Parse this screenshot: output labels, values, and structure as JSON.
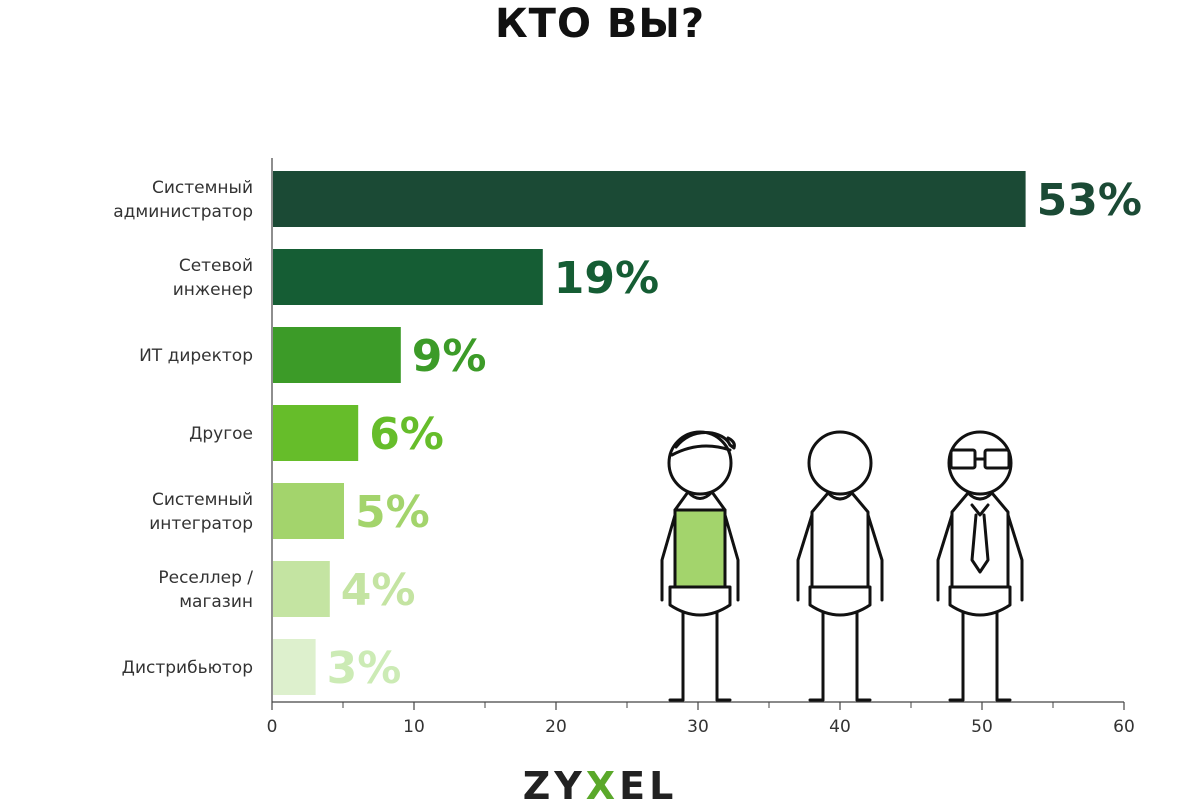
{
  "title": "КТО ВЫ?",
  "brand": {
    "prefix": "ZY",
    "accent": "X",
    "suffix": "EL"
  },
  "chart_data": {
    "type": "bar",
    "orientation": "horizontal",
    "title": "КТО ВЫ?",
    "xlabel": "",
    "ylabel": "",
    "xlim": [
      0,
      60
    ],
    "xticks": [
      0,
      10,
      20,
      30,
      40,
      50,
      60
    ],
    "grid": false,
    "categories": [
      [
        "Системный",
        "администратор"
      ],
      [
        "Сетевой",
        "инженер"
      ],
      [
        "ИТ директор"
      ],
      [
        "Другое"
      ],
      [
        "Системный",
        "интегратор"
      ],
      [
        "Реселлер /",
        "магазин"
      ],
      [
        "Дистрибьютор"
      ]
    ],
    "values": [
      53,
      19,
      9,
      6,
      5,
      4,
      3
    ],
    "value_labels": [
      "53%",
      "19%",
      "9%",
      "6%",
      "5%",
      "4%",
      "3%"
    ],
    "colors": [
      "#1b4a35",
      "#155d34",
      "#3c9b28",
      "#66bd2a",
      "#a3d46c",
      "#c4e4a2",
      "#ddf0cd"
    ],
    "label_colors": [
      "#1b4a35",
      "#155d34",
      "#3c9b28",
      "#66bd2a",
      "#a3d46c",
      "#c4e4a2",
      "#ccebb5"
    ]
  },
  "illustration": {
    "figures": [
      "person-casual-icon",
      "person-plain-icon",
      "person-glasses-tie-icon"
    ],
    "shirt_color": "#a3d46c"
  }
}
